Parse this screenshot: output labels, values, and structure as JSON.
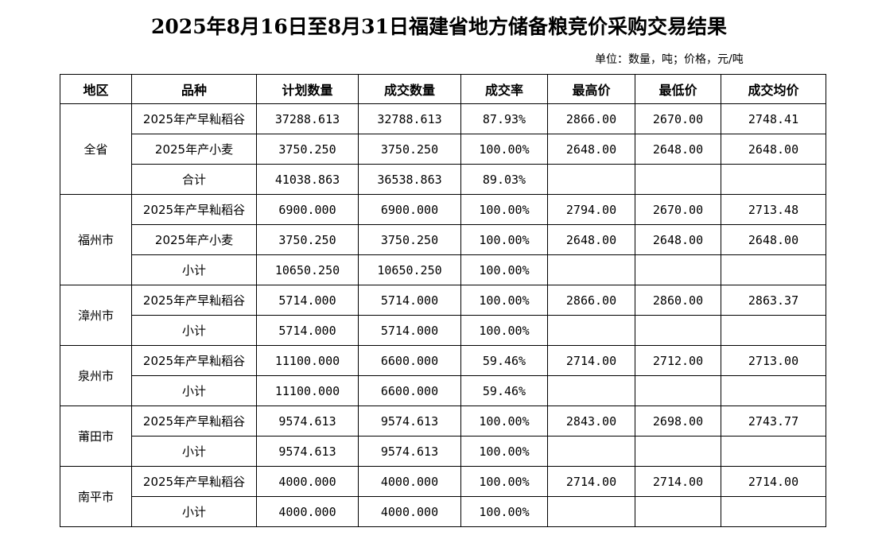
{
  "title": "2025年8月16日至8月31日福建省地方储备粮竞价采购交易结果",
  "unit_note": "单位：数量，吨；价格，元/吨",
  "columns": [
    "地区",
    "品种",
    "计划数量",
    "成交数量",
    "成交率",
    "最高价",
    "最低价",
    "成交均价"
  ],
  "groups": [
    {
      "region": "全省",
      "rows": [
        {
          "variety": "2025年产早籼稻谷",
          "plan": "37288.613",
          "deal": "32788.613",
          "rate": "87.93%",
          "max": "2866.00",
          "min": "2670.00",
          "avg": "2748.41"
        },
        {
          "variety": "2025年产小麦",
          "plan": "3750.250",
          "deal": "3750.250",
          "rate": "100.00%",
          "max": "2648.00",
          "min": "2648.00",
          "avg": "2648.00"
        },
        {
          "variety": "合计",
          "plan": "41038.863",
          "deal": "36538.863",
          "rate": "89.03%",
          "max": "",
          "min": "",
          "avg": ""
        }
      ]
    },
    {
      "region": "福州市",
      "rows": [
        {
          "variety": "2025年产早籼稻谷",
          "plan": "6900.000",
          "deal": "6900.000",
          "rate": "100.00%",
          "max": "2794.00",
          "min": "2670.00",
          "avg": "2713.48"
        },
        {
          "variety": "2025年产小麦",
          "plan": "3750.250",
          "deal": "3750.250",
          "rate": "100.00%",
          "max": "2648.00",
          "min": "2648.00",
          "avg": "2648.00"
        },
        {
          "variety": "小计",
          "plan": "10650.250",
          "deal": "10650.250",
          "rate": "100.00%",
          "max": "",
          "min": "",
          "avg": ""
        }
      ]
    },
    {
      "region": "漳州市",
      "rows": [
        {
          "variety": "2025年产早籼稻谷",
          "plan": "5714.000",
          "deal": "5714.000",
          "rate": "100.00%",
          "max": "2866.00",
          "min": "2860.00",
          "avg": "2863.37"
        },
        {
          "variety": "小计",
          "plan": "5714.000",
          "deal": "5714.000",
          "rate": "100.00%",
          "max": "",
          "min": "",
          "avg": ""
        }
      ]
    },
    {
      "region": "泉州市",
      "rows": [
        {
          "variety": "2025年产早籼稻谷",
          "plan": "11100.000",
          "deal": "6600.000",
          "rate": "59.46%",
          "max": "2714.00",
          "min": "2712.00",
          "avg": "2713.00"
        },
        {
          "variety": "小计",
          "plan": "11100.000",
          "deal": "6600.000",
          "rate": "59.46%",
          "max": "",
          "min": "",
          "avg": ""
        }
      ]
    },
    {
      "region": "莆田市",
      "rows": [
        {
          "variety": "2025年产早籼稻谷",
          "plan": "9574.613",
          "deal": "9574.613",
          "rate": "100.00%",
          "max": "2843.00",
          "min": "2698.00",
          "avg": "2743.77"
        },
        {
          "variety": "小计",
          "plan": "9574.613",
          "deal": "9574.613",
          "rate": "100.00%",
          "max": "",
          "min": "",
          "avg": ""
        }
      ]
    },
    {
      "region": "南平市",
      "rows": [
        {
          "variety": "2025年产早籼稻谷",
          "plan": "4000.000",
          "deal": "4000.000",
          "rate": "100.00%",
          "max": "2714.00",
          "min": "2714.00",
          "avg": "2714.00"
        },
        {
          "variety": "小计",
          "plan": "4000.000",
          "deal": "4000.000",
          "rate": "100.00%",
          "max": "",
          "min": "",
          "avg": ""
        }
      ]
    }
  ]
}
